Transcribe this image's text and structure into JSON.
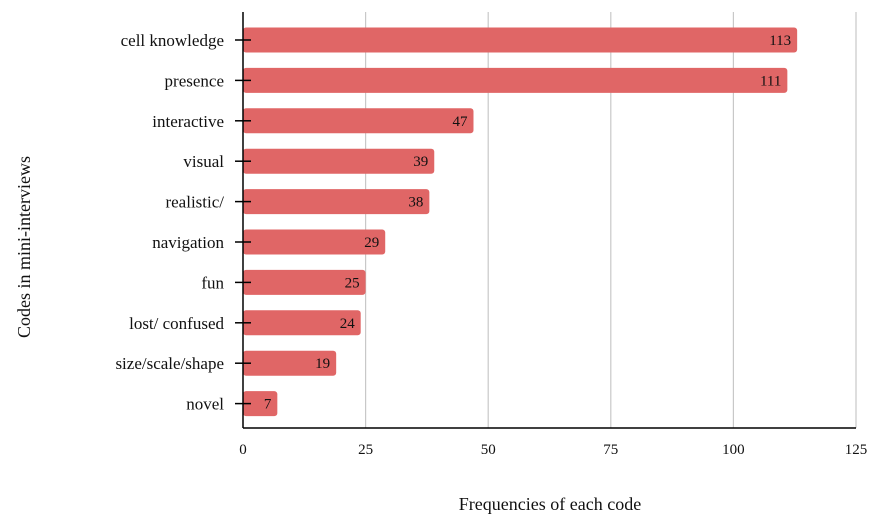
{
  "chart_data": {
    "type": "bar",
    "orientation": "horizontal",
    "title": "",
    "xlabel": "Frequencies of each code",
    "ylabel": "Codes in mini-interviews",
    "categories": [
      "cell knowledge",
      "presence",
      "interactive",
      "visual",
      "realistic/",
      "navigation",
      "fun",
      "lost/ confused",
      "size/scale/shape",
      "novel"
    ],
    "values": [
      113,
      111,
      47,
      39,
      38,
      29,
      25,
      24,
      19,
      7
    ],
    "xlim": [
      0,
      125
    ],
    "xticks": [
      "0",
      "25",
      "50",
      "75",
      "100",
      "125"
    ],
    "grid": true,
    "bar_color": "#e06666",
    "grid_color": "#c8c8c8",
    "axis_color": "#000000"
  }
}
